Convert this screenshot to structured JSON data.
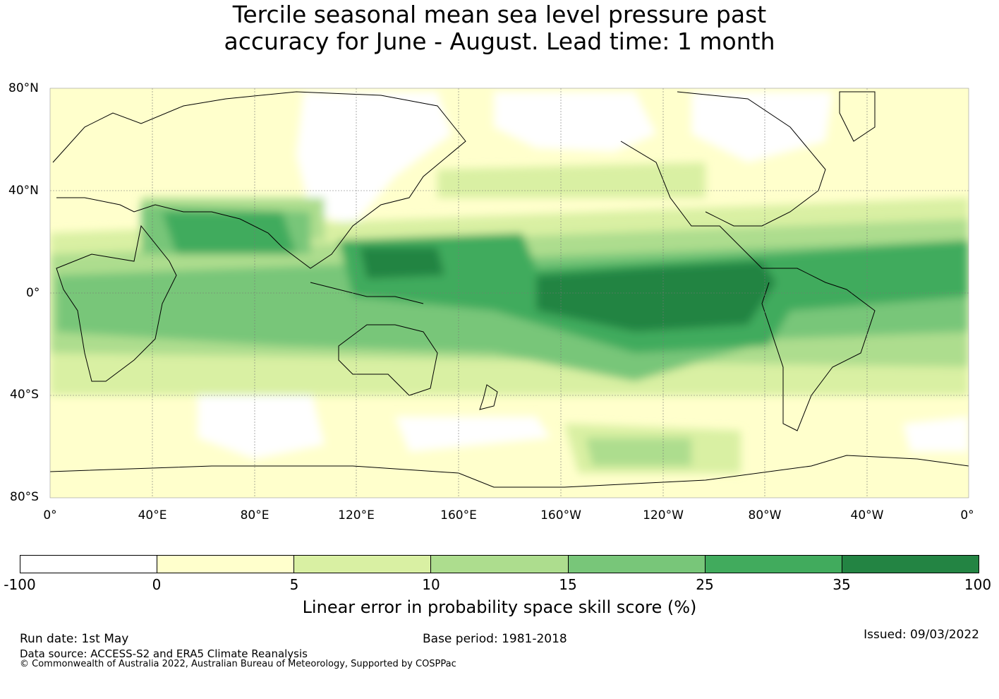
{
  "title": {
    "line1": "Tercile seasonal mean sea level pressure past",
    "line2": "accuracy for June - August. Lead time: 1 month"
  },
  "map": {
    "lat_labels": [
      "80°N",
      "40°N",
      "0°",
      "40°S",
      "80°S"
    ],
    "lon_labels": [
      "0°",
      "40°E",
      "80°E",
      "120°E",
      "160°E",
      "160°W",
      "120°W",
      "80°W",
      "40°W",
      "0°"
    ]
  },
  "colorbar": {
    "label": "Linear error in probability space skill score (%)",
    "ticks": [
      "-100",
      "0",
      "5",
      "10",
      "15",
      "25",
      "35",
      "100"
    ],
    "colors": [
      "#ffffff",
      "#ffffcc",
      "#d9f0a3",
      "#addd8e",
      "#78c679",
      "#41ab5d",
      "#238443"
    ]
  },
  "footer": {
    "run_date": "Run date: 1st May",
    "base_period": "Base period: 1981-2018",
    "issued": "Issued: 09/03/2022",
    "data_source": "Data source: ACCESS-S2 and ERA5 Climate Reanalysis",
    "copyright": "© Commonwealth of Australia 2022, Australian Bureau of Meteorology, Supported by COSPPac"
  }
}
